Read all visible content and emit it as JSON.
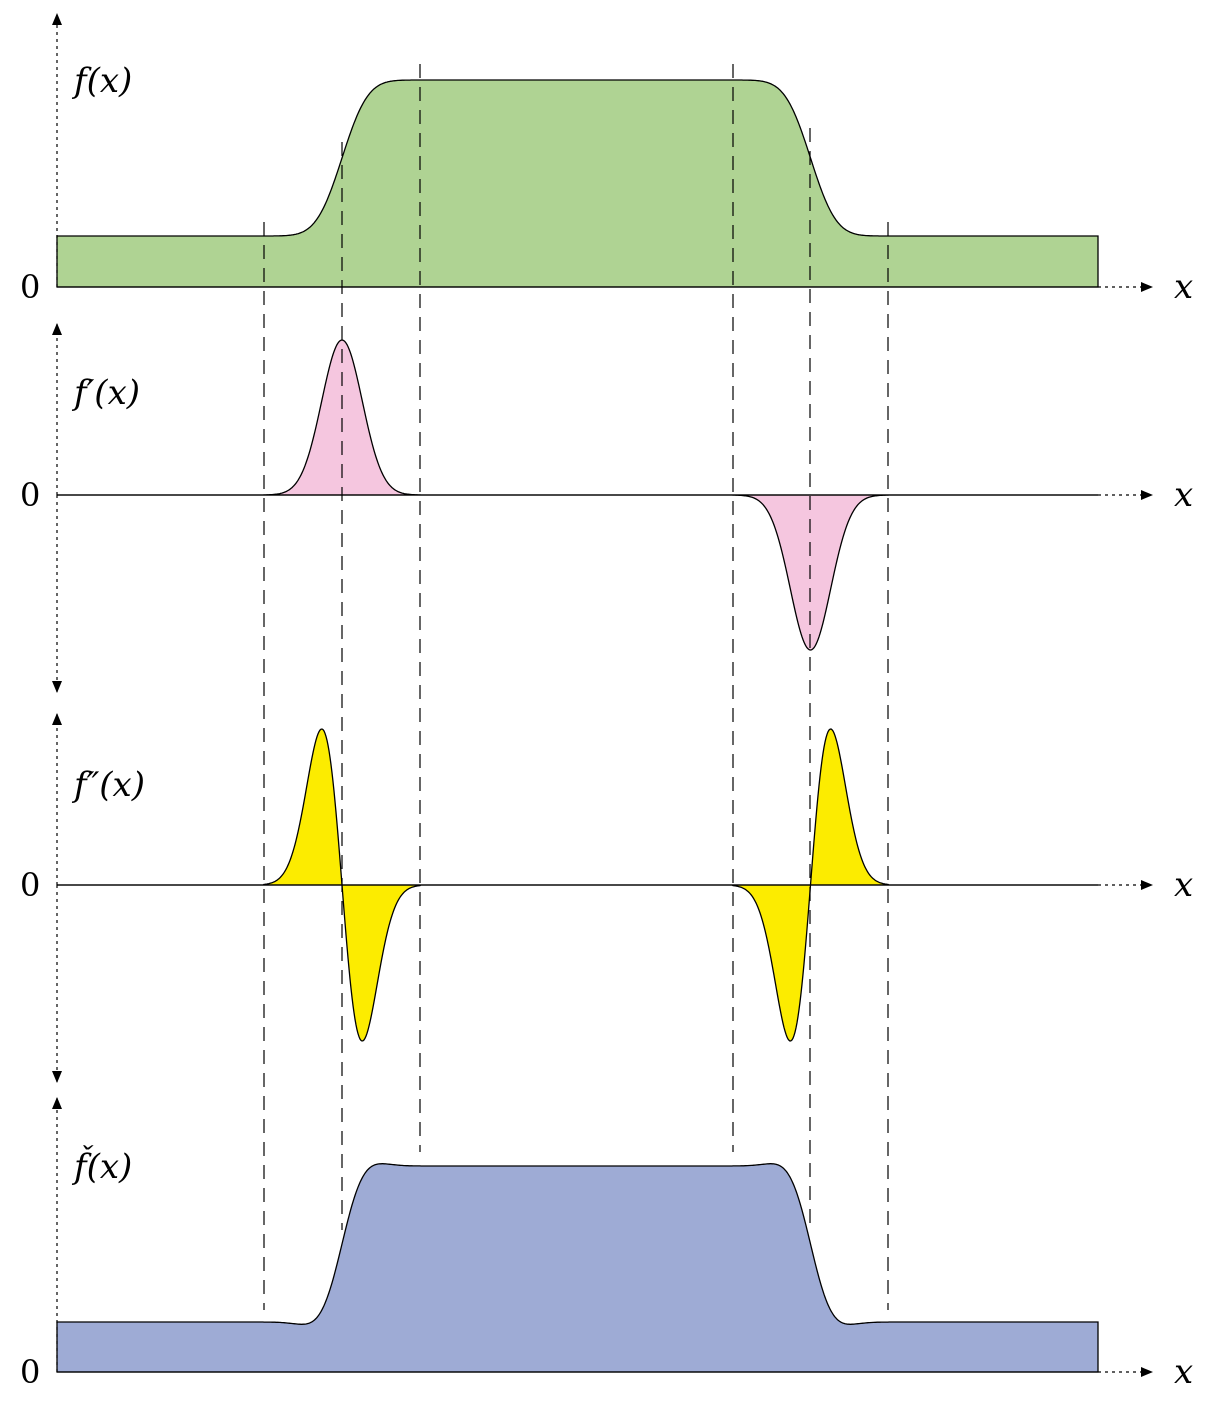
{
  "colors": {
    "f": "#afd393",
    "df": "#f5c6df",
    "ddf": "#fcec00",
    "fs": "#9eabd5",
    "stroke": "#000000"
  },
  "panels": [
    {
      "id": "f",
      "label": "f(x)",
      "zero": "0",
      "xlabel": "x"
    },
    {
      "id": "df",
      "label": "f′(x)",
      "zero": "0",
      "xlabel": "x"
    },
    {
      "id": "ddf",
      "label": "f″(x)",
      "zero": "0",
      "xlabel": "x"
    },
    {
      "id": "fs",
      "label": "f̌(x)",
      "zero": "0",
      "xlabel": "x"
    }
  ]
}
